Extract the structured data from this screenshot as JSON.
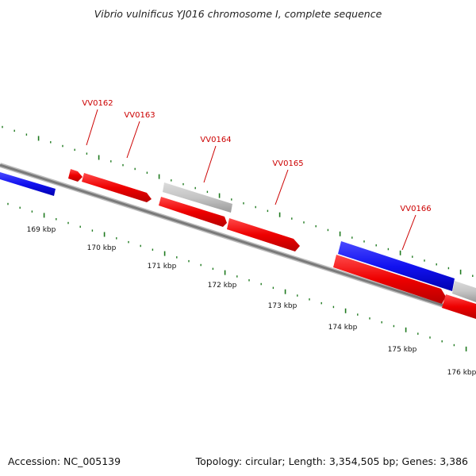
{
  "header": {
    "title": "Vibrio vulnificus YJ016 chromosome I, complete sequence"
  },
  "footer": {
    "accession": "Accession: NC_005139",
    "topology": "Topology: circular; Length: 3,354,505 bp; Genes: 3,386"
  },
  "map": {
    "scale_labels": [
      "169 kbp",
      "170 kbp",
      "171 kbp",
      "172 kbp",
      "173 kbp",
      "174 kbp",
      "175 kbp",
      "176 kbp"
    ],
    "genes": [
      {
        "name": "VV0162",
        "color": "#e60000"
      },
      {
        "name": "VV0163",
        "color": "#e60000"
      },
      {
        "name": "VV0164",
        "color": "#e60000"
      },
      {
        "name": "VV0165",
        "color": "#e60000"
      },
      {
        "name": "VV0166",
        "color": "#1a1aff"
      }
    ],
    "colors": {
      "forward_gene": "#e60000",
      "other_gene": "#1a1aff",
      "noncoding_gene": "#bdbdbd",
      "backbone": "#808080",
      "tick": "#1f7a1f",
      "label": "#cc0000"
    }
  }
}
